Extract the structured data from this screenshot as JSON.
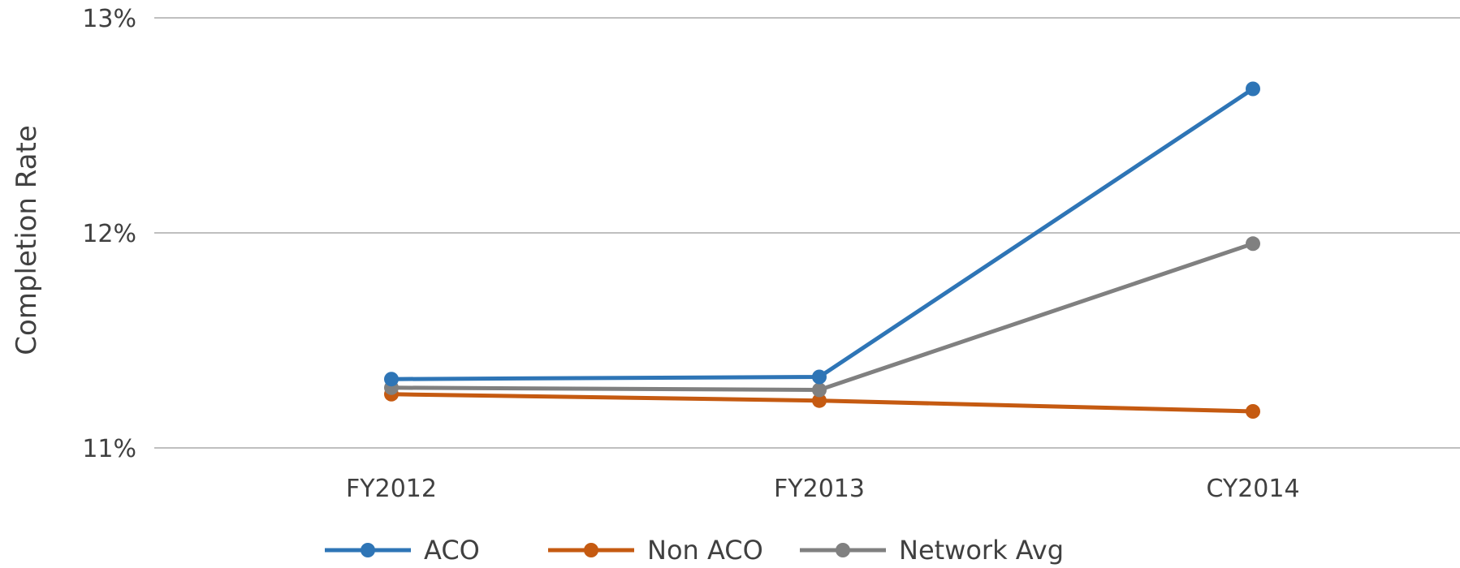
{
  "chart_data": {
    "type": "line",
    "title": "",
    "xlabel": "",
    "ylabel": "Completion Rate",
    "categories": [
      "FY2012",
      "FY2013",
      "CY2014"
    ],
    "ylim": [
      11,
      13
    ],
    "yticks": [
      11,
      12,
      13
    ],
    "ytick_labels": [
      "11%",
      "12%",
      "13%"
    ],
    "grid": "horizontal",
    "legend_position": "bottom",
    "series": [
      {
        "name": "ACO",
        "color": "#2e75b6",
        "values": [
          11.32,
          11.33,
          12.67
        ]
      },
      {
        "name": "Non ACO",
        "color": "#c55a11",
        "values": [
          11.25,
          11.22,
          11.17
        ]
      },
      {
        "name": "Network Avg",
        "color": "#808080",
        "values": [
          11.28,
          11.27,
          11.95
        ]
      }
    ]
  }
}
